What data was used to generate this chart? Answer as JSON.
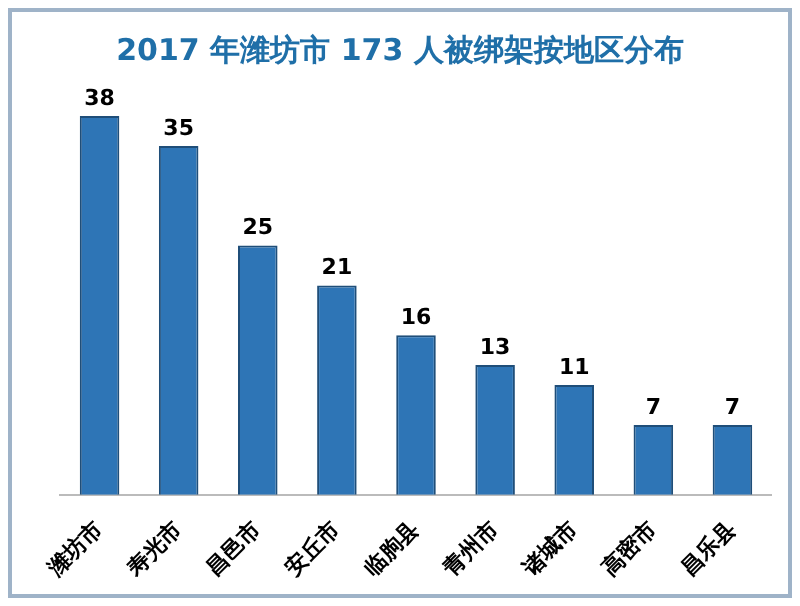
{
  "chart_data": {
    "type": "bar",
    "title": "2017 年潍坊市 173 人被绑架按地区分布",
    "categories": [
      "潍坊市",
      "寿光市",
      "昌邑市",
      "安丘市",
      "临朐县",
      "青州市",
      "诸城市",
      "高密市",
      "昌乐县"
    ],
    "values": [
      38,
      35,
      25,
      21,
      16,
      13,
      11,
      7,
      7
    ],
    "color": "#2e75b6",
    "data_labels": true
  }
}
